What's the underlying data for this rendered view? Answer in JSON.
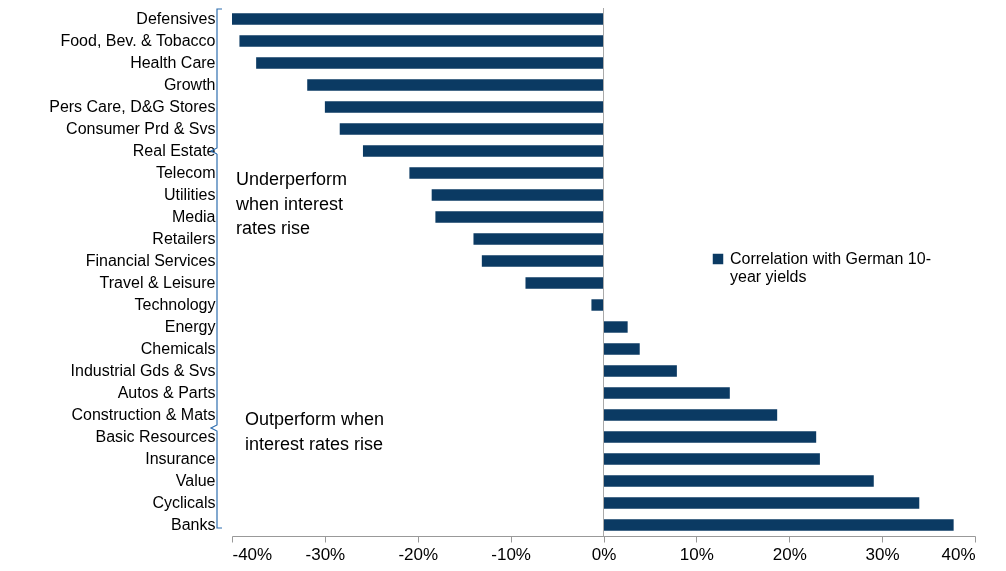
{
  "chart_data": {
    "type": "bar",
    "orientation": "horizontal",
    "categories": [
      "Defensives",
      "Food, Bev. & Tobacco",
      "Health Care",
      "Growth",
      "Pers Care, D&G Stores",
      "Consumer Prd & Svs",
      "Real Estate",
      "Telecom",
      "Utilities",
      "Media",
      "Retailers",
      "Financial Services",
      "Travel & Leisure",
      "Technology",
      "Energy",
      "Chemicals",
      "Industrial Gds & Svs",
      "Autos & Parts",
      "Construction & Mats",
      "Basic Resources",
      "Insurance",
      "Value",
      "Cyclicals",
      "Banks"
    ],
    "series": [
      {
        "name": "Correlation with German 10-year yields",
        "color": "#0b3a63",
        "values": [
          -40,
          -39.2,
          -37.4,
          -31.9,
          -30,
          -28.4,
          -25.9,
          -20.9,
          -18.5,
          -18.1,
          -14,
          -13.1,
          -8.4,
          -1.3,
          2.6,
          3.9,
          7.9,
          13.6,
          18.7,
          22.9,
          23.3,
          29.1,
          34,
          37.7
        ]
      }
    ],
    "xlim": [
      -40,
      40
    ],
    "xticks": [
      {
        "value": -40,
        "label": "-40%"
      },
      {
        "value": -30,
        "label": "-30%"
      },
      {
        "value": -20,
        "label": "-20%"
      },
      {
        "value": -10,
        "label": "-10%"
      },
      {
        "value": 0,
        "label": "0%"
      },
      {
        "value": 10,
        "label": "10%"
      },
      {
        "value": 20,
        "label": "20%"
      },
      {
        "value": 30,
        "label": "30%"
      },
      {
        "value": 40,
        "label": "40%"
      }
    ],
    "annotations": [
      "Underperform when interest rates rise",
      "Outperform when interest rates rise"
    ],
    "ref_lines": [
      {
        "axis": "x",
        "value": 0,
        "color": "#aaaaaa"
      }
    ],
    "legend": "right"
  }
}
